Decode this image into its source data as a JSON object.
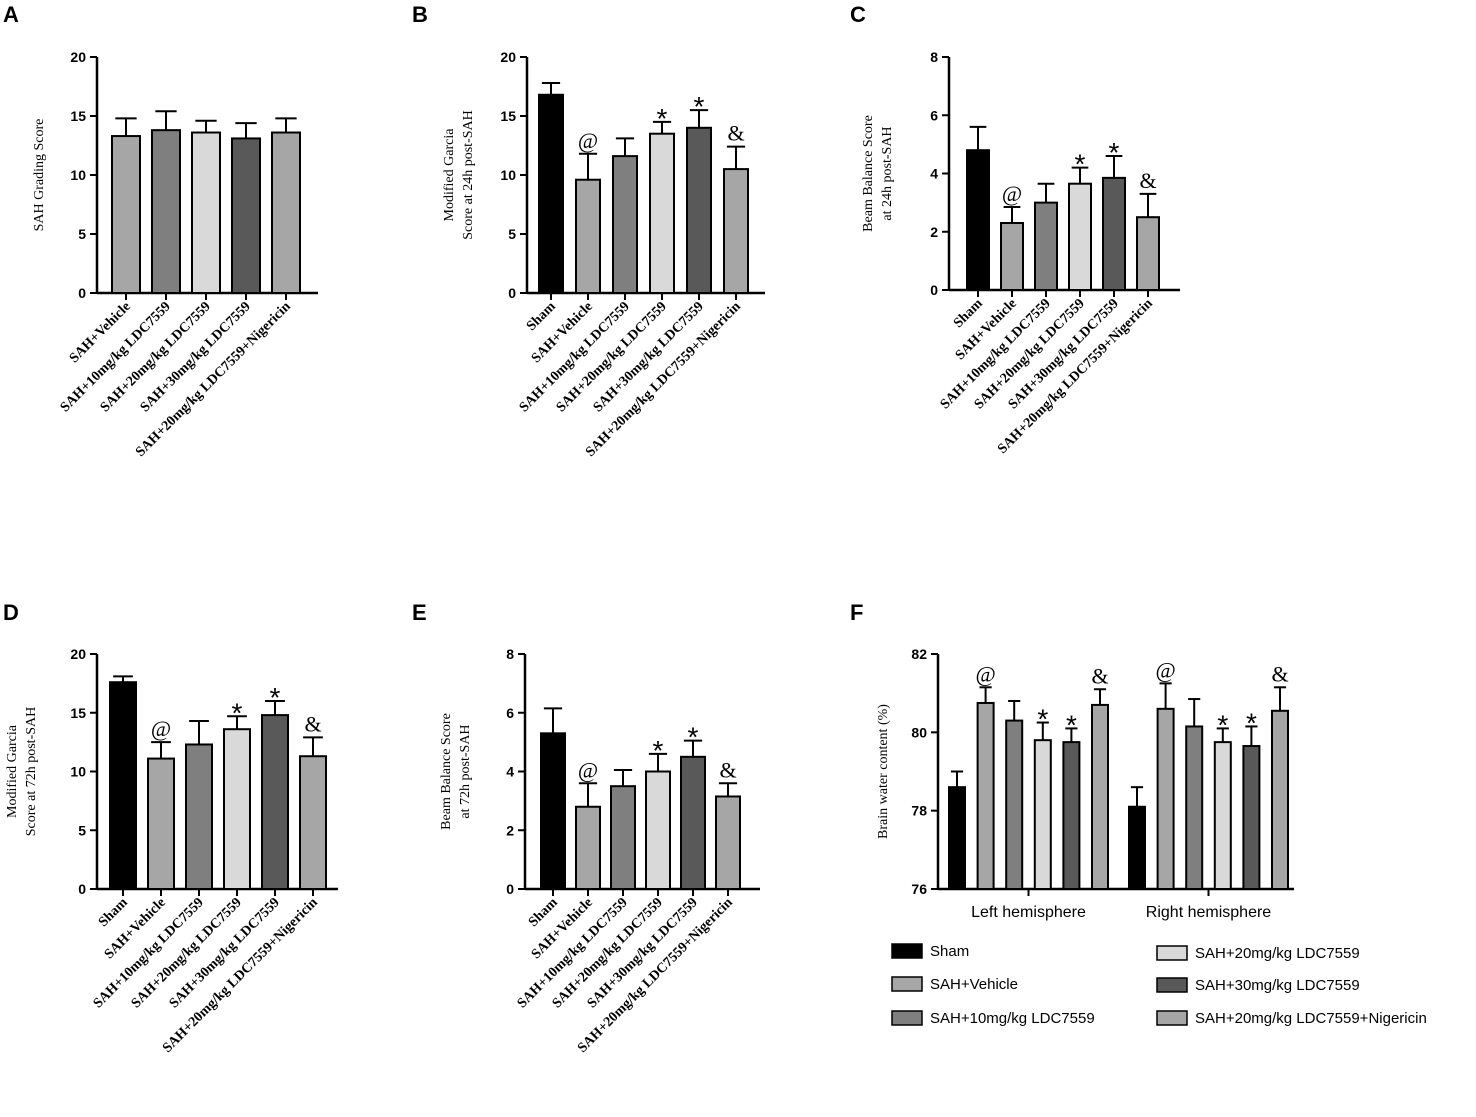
{
  "colors": {
    "Sham": "#000000",
    "SAH+Vehicle": "#a6a6a6",
    "SAH+10mg/kg LDC7559": "#7f7f7f",
    "SAH+20mg/kg LDC7559": "#d9d9d9",
    "SAH+30mg/kg LDC7559": "#595959",
    "SAH+20mg/kg LDC7559+Nigericin": "#a6a6a6"
  },
  "chart_data": [
    {
      "id": "A",
      "type": "bar",
      "ylabel_lines": [
        "SAH Grading Score"
      ],
      "ylim": [
        0,
        20
      ],
      "yticks": [
        0,
        5,
        10,
        15,
        20
      ],
      "categories": [
        "SAH+Vehicle",
        "SAH+10mg/kg LDC7559",
        "SAH+20mg/kg LDC7559",
        "SAH+30mg/kg LDC7559",
        "SAH+20mg/kg LDC7559+Nigericin"
      ],
      "values": [
        13.3,
        13.8,
        13.6,
        13.1,
        13.6
      ],
      "errors": [
        1.5,
        1.6,
        1.0,
        1.3,
        1.2
      ],
      "annotations": [
        "",
        "",
        "",
        "",
        ""
      ]
    },
    {
      "id": "B",
      "type": "bar",
      "ylabel_lines": [
        "Modified Garcia",
        "Score at 24h post-SAH"
      ],
      "ylim": [
        0,
        20
      ],
      "yticks": [
        0,
        5,
        10,
        15,
        20
      ],
      "categories": [
        "Sham",
        "SAH+Vehicle",
        "SAH+10mg/kg LDC7559",
        "SAH+20mg/kg LDC7559",
        "SAH+30mg/kg LDC7559",
        "SAH+20mg/kg LDC7559+Nigericin"
      ],
      "values": [
        16.8,
        9.6,
        11.6,
        13.5,
        14.0,
        10.5
      ],
      "errors": [
        1.0,
        2.2,
        1.5,
        1.0,
        1.5,
        1.9
      ],
      "annotations": [
        "",
        "@",
        "",
        "*",
        "*",
        "&"
      ]
    },
    {
      "id": "C",
      "type": "bar",
      "ylabel_lines": [
        "Beam Balance Score",
        "at 24h post-SAH"
      ],
      "ylim": [
        0,
        8
      ],
      "yticks": [
        0,
        2,
        4,
        6,
        8
      ],
      "categories": [
        "Sham",
        "SAH+Vehicle",
        "SAH+10mg/kg LDC7559",
        "SAH+20mg/kg LDC7559",
        "SAH+30mg/kg LDC7559",
        "SAH+20mg/kg LDC7559+Nigericin"
      ],
      "values": [
        4.8,
        2.3,
        3.0,
        3.65,
        3.85,
        2.5
      ],
      "errors": [
        0.8,
        0.55,
        0.65,
        0.55,
        0.75,
        0.8
      ],
      "annotations": [
        "",
        "@",
        "",
        "*",
        "*",
        "&"
      ]
    },
    {
      "id": "D",
      "type": "bar",
      "ylabel_lines": [
        "Modified Garcia",
        "Score at 72h post-SAH"
      ],
      "ylim": [
        0,
        20
      ],
      "yticks": [
        0,
        5,
        10,
        15,
        20
      ],
      "categories": [
        "Sham",
        "SAH+Vehicle",
        "SAH+10mg/kg LDC7559",
        "SAH+20mg/kg LDC7559",
        "SAH+30mg/kg LDC7559",
        "SAH+20mg/kg LDC7559+Nigericin"
      ],
      "values": [
        17.6,
        11.1,
        12.3,
        13.6,
        14.8,
        11.3
      ],
      "errors": [
        0.5,
        1.4,
        2.0,
        1.1,
        1.2,
        1.6
      ],
      "annotations": [
        "",
        "@",
        "",
        "*",
        "*",
        "&"
      ]
    },
    {
      "id": "E",
      "type": "bar",
      "ylabel_lines": [
        "Beam Balance Score",
        "at 72h post-SAH"
      ],
      "ylim": [
        0,
        8
      ],
      "yticks": [
        0,
        2,
        4,
        6,
        8
      ],
      "categories": [
        "Sham",
        "SAH+Vehicle",
        "SAH+10mg/kg LDC7559",
        "SAH+20mg/kg LDC7559",
        "SAH+30mg/kg LDC7559",
        "SAH+20mg/kg LDC7559+Nigericin"
      ],
      "values": [
        5.3,
        2.8,
        3.5,
        4.0,
        4.5,
        3.15
      ],
      "errors": [
        0.85,
        0.8,
        0.55,
        0.6,
        0.55,
        0.45
      ],
      "annotations": [
        "",
        "@",
        "",
        "*",
        "*",
        "&"
      ]
    },
    {
      "id": "F",
      "type": "bar",
      "ylabel_lines": [
        "Brain water content (%)"
      ],
      "ylim": [
        76,
        82
      ],
      "yticks": [
        76,
        78,
        80,
        82
      ],
      "groups": [
        "Left hemisphere",
        "Right hemisphere"
      ],
      "series": [
        {
          "name": "Sham",
          "values": [
            78.6,
            78.1
          ],
          "errors": [
            0.4,
            0.5
          ],
          "annotations": [
            "",
            ""
          ]
        },
        {
          "name": "SAH+Vehicle",
          "values": [
            80.75,
            80.6
          ],
          "errors": [
            0.4,
            0.65
          ],
          "annotations": [
            "@",
            "@"
          ]
        },
        {
          "name": "SAH+10mg/kg LDC7559",
          "values": [
            80.3,
            80.15
          ],
          "errors": [
            0.5,
            0.7
          ],
          "annotations": [
            "",
            ""
          ]
        },
        {
          "name": "SAH+20mg/kg LDC7559",
          "values": [
            79.8,
            79.75
          ],
          "errors": [
            0.45,
            0.35
          ],
          "annotations": [
            "*",
            "*"
          ]
        },
        {
          "name": "SAH+30mg/kg LDC7559",
          "values": [
            79.75,
            79.65
          ],
          "errors": [
            0.35,
            0.5
          ],
          "annotations": [
            "*",
            "*"
          ]
        },
        {
          "name": "SAH+20mg/kg LDC7559+Nigericin",
          "values": [
            80.7,
            80.55
          ],
          "errors": [
            0.4,
            0.6
          ],
          "annotations": [
            "&",
            "&"
          ]
        }
      ],
      "legend": [
        "Sham",
        "SAH+Vehicle",
        "SAH+10mg/kg LDC7559",
        "SAH+20mg/kg LDC7559",
        "SAH+30mg/kg LDC7559",
        "SAH+20mg/kg LDC7559+Nigericin"
      ]
    }
  ]
}
